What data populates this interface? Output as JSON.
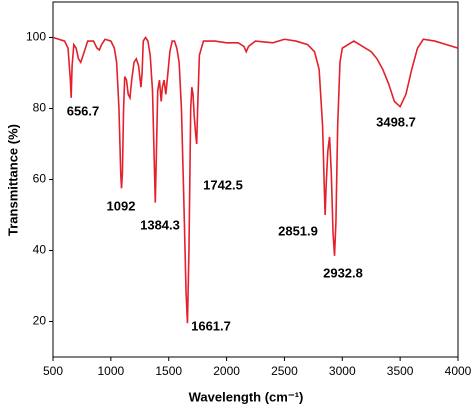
{
  "chart_data": {
    "type": "line",
    "xlabel": "Wavelength (cm⁻¹)",
    "ylabel": "Transmittance (%)",
    "xlim": [
      500,
      4000
    ],
    "xticks": [
      500,
      1000,
      1500,
      2000,
      2500,
      3000,
      3500,
      4000
    ],
    "ylim": [
      10,
      110
    ],
    "yticks": [
      20,
      40,
      60,
      80,
      100
    ],
    "color": "#e4202b",
    "x": [
      500,
      550,
      600,
      630,
      650,
      657,
      665,
      680,
      700,
      720,
      740,
      760,
      800,
      850,
      880,
      900,
      920,
      950,
      1000,
      1030,
      1050,
      1070,
      1085,
      1092,
      1100,
      1110,
      1120,
      1135,
      1150,
      1165,
      1180,
      1200,
      1220,
      1240,
      1260,
      1270,
      1280,
      1300,
      1320,
      1340,
      1360,
      1375,
      1384,
      1392,
      1405,
      1420,
      1435,
      1445,
      1460,
      1475,
      1490,
      1510,
      1530,
      1550,
      1570,
      1590,
      1610,
      1630,
      1650,
      1662,
      1675,
      1690,
      1700,
      1710,
      1720,
      1735,
      1742,
      1750,
      1765,
      1800,
      1900,
      2000,
      2100,
      2150,
      2170,
      2190,
      2250,
      2400,
      2500,
      2600,
      2700,
      2760,
      2800,
      2830,
      2845,
      2852,
      2860,
      2875,
      2890,
      2905,
      2920,
      2933,
      2945,
      2960,
      2980,
      3000,
      3050,
      3100,
      3150,
      3200,
      3250,
      3300,
      3350,
      3400,
      3450,
      3500,
      3550,
      3600,
      3650,
      3700,
      3800,
      3900,
      4000
    ],
    "values": [
      100,
      99.5,
      99,
      97,
      88,
      83,
      92,
      98,
      97,
      94,
      93,
      95,
      99,
      99,
      97,
      96.5,
      98,
      99.5,
      99,
      97,
      93,
      80,
      62,
      57.5,
      62,
      80,
      89,
      88,
      84,
      83,
      88,
      93,
      94,
      92,
      86,
      90,
      99,
      100,
      99,
      95,
      85,
      65,
      53.5,
      65,
      85,
      88,
      82,
      86,
      88,
      84,
      89,
      96,
      99,
      99,
      97,
      93,
      80,
      55,
      28,
      19.5,
      40,
      80,
      86,
      84,
      78,
      72,
      70,
      80,
      95,
      99,
      99,
      98.5,
      98.5,
      97.5,
      96,
      97.5,
      99,
      98.5,
      99.5,
      99,
      98,
      96,
      91,
      75,
      57,
      50,
      58,
      68,
      72,
      62,
      45,
      38.5,
      48,
      75,
      93,
      97,
      98,
      99,
      98,
      97,
      96,
      94,
      91,
      87,
      82,
      80.5,
      84,
      91,
      97,
      99.5,
      99,
      98,
      97
    ],
    "peaks": [
      656.7,
      1092,
      1384.3,
      1742.5,
      1661.7,
      2851.9,
      2932.8,
      3498.7
    ]
  }
}
